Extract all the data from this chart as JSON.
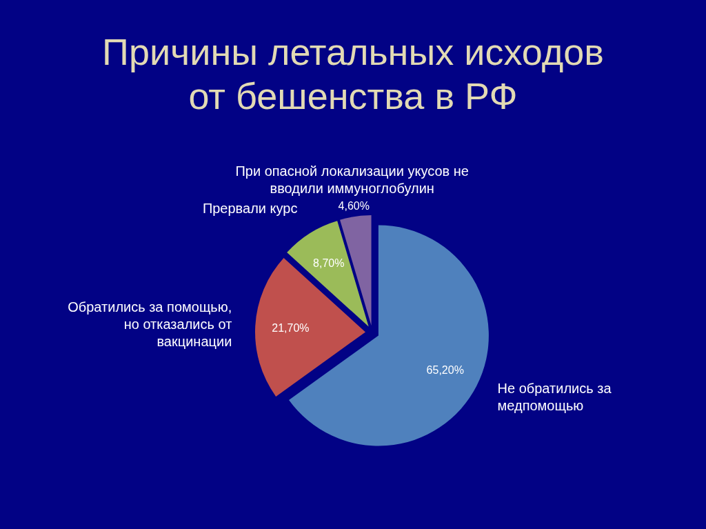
{
  "chart_data": {
    "type": "pie",
    "title": "Причины летальных исходов от бешенства в РФ",
    "categories": [
      "Не обратились за медпомощью",
      "Обратились за помощью, но отказались от вакцинации",
      "Прервали курс",
      "При опасной локализации укусов не вводили иммуноглобулин"
    ],
    "values": [
      65.2,
      21.7,
      8.7,
      4.6
    ],
    "colors": [
      "#4f81bd",
      "#c0504d",
      "#9bbb59",
      "#8064a2"
    ],
    "value_labels": [
      "65,20%",
      "21,70%",
      "8,70%",
      "4,60%"
    ]
  }
}
